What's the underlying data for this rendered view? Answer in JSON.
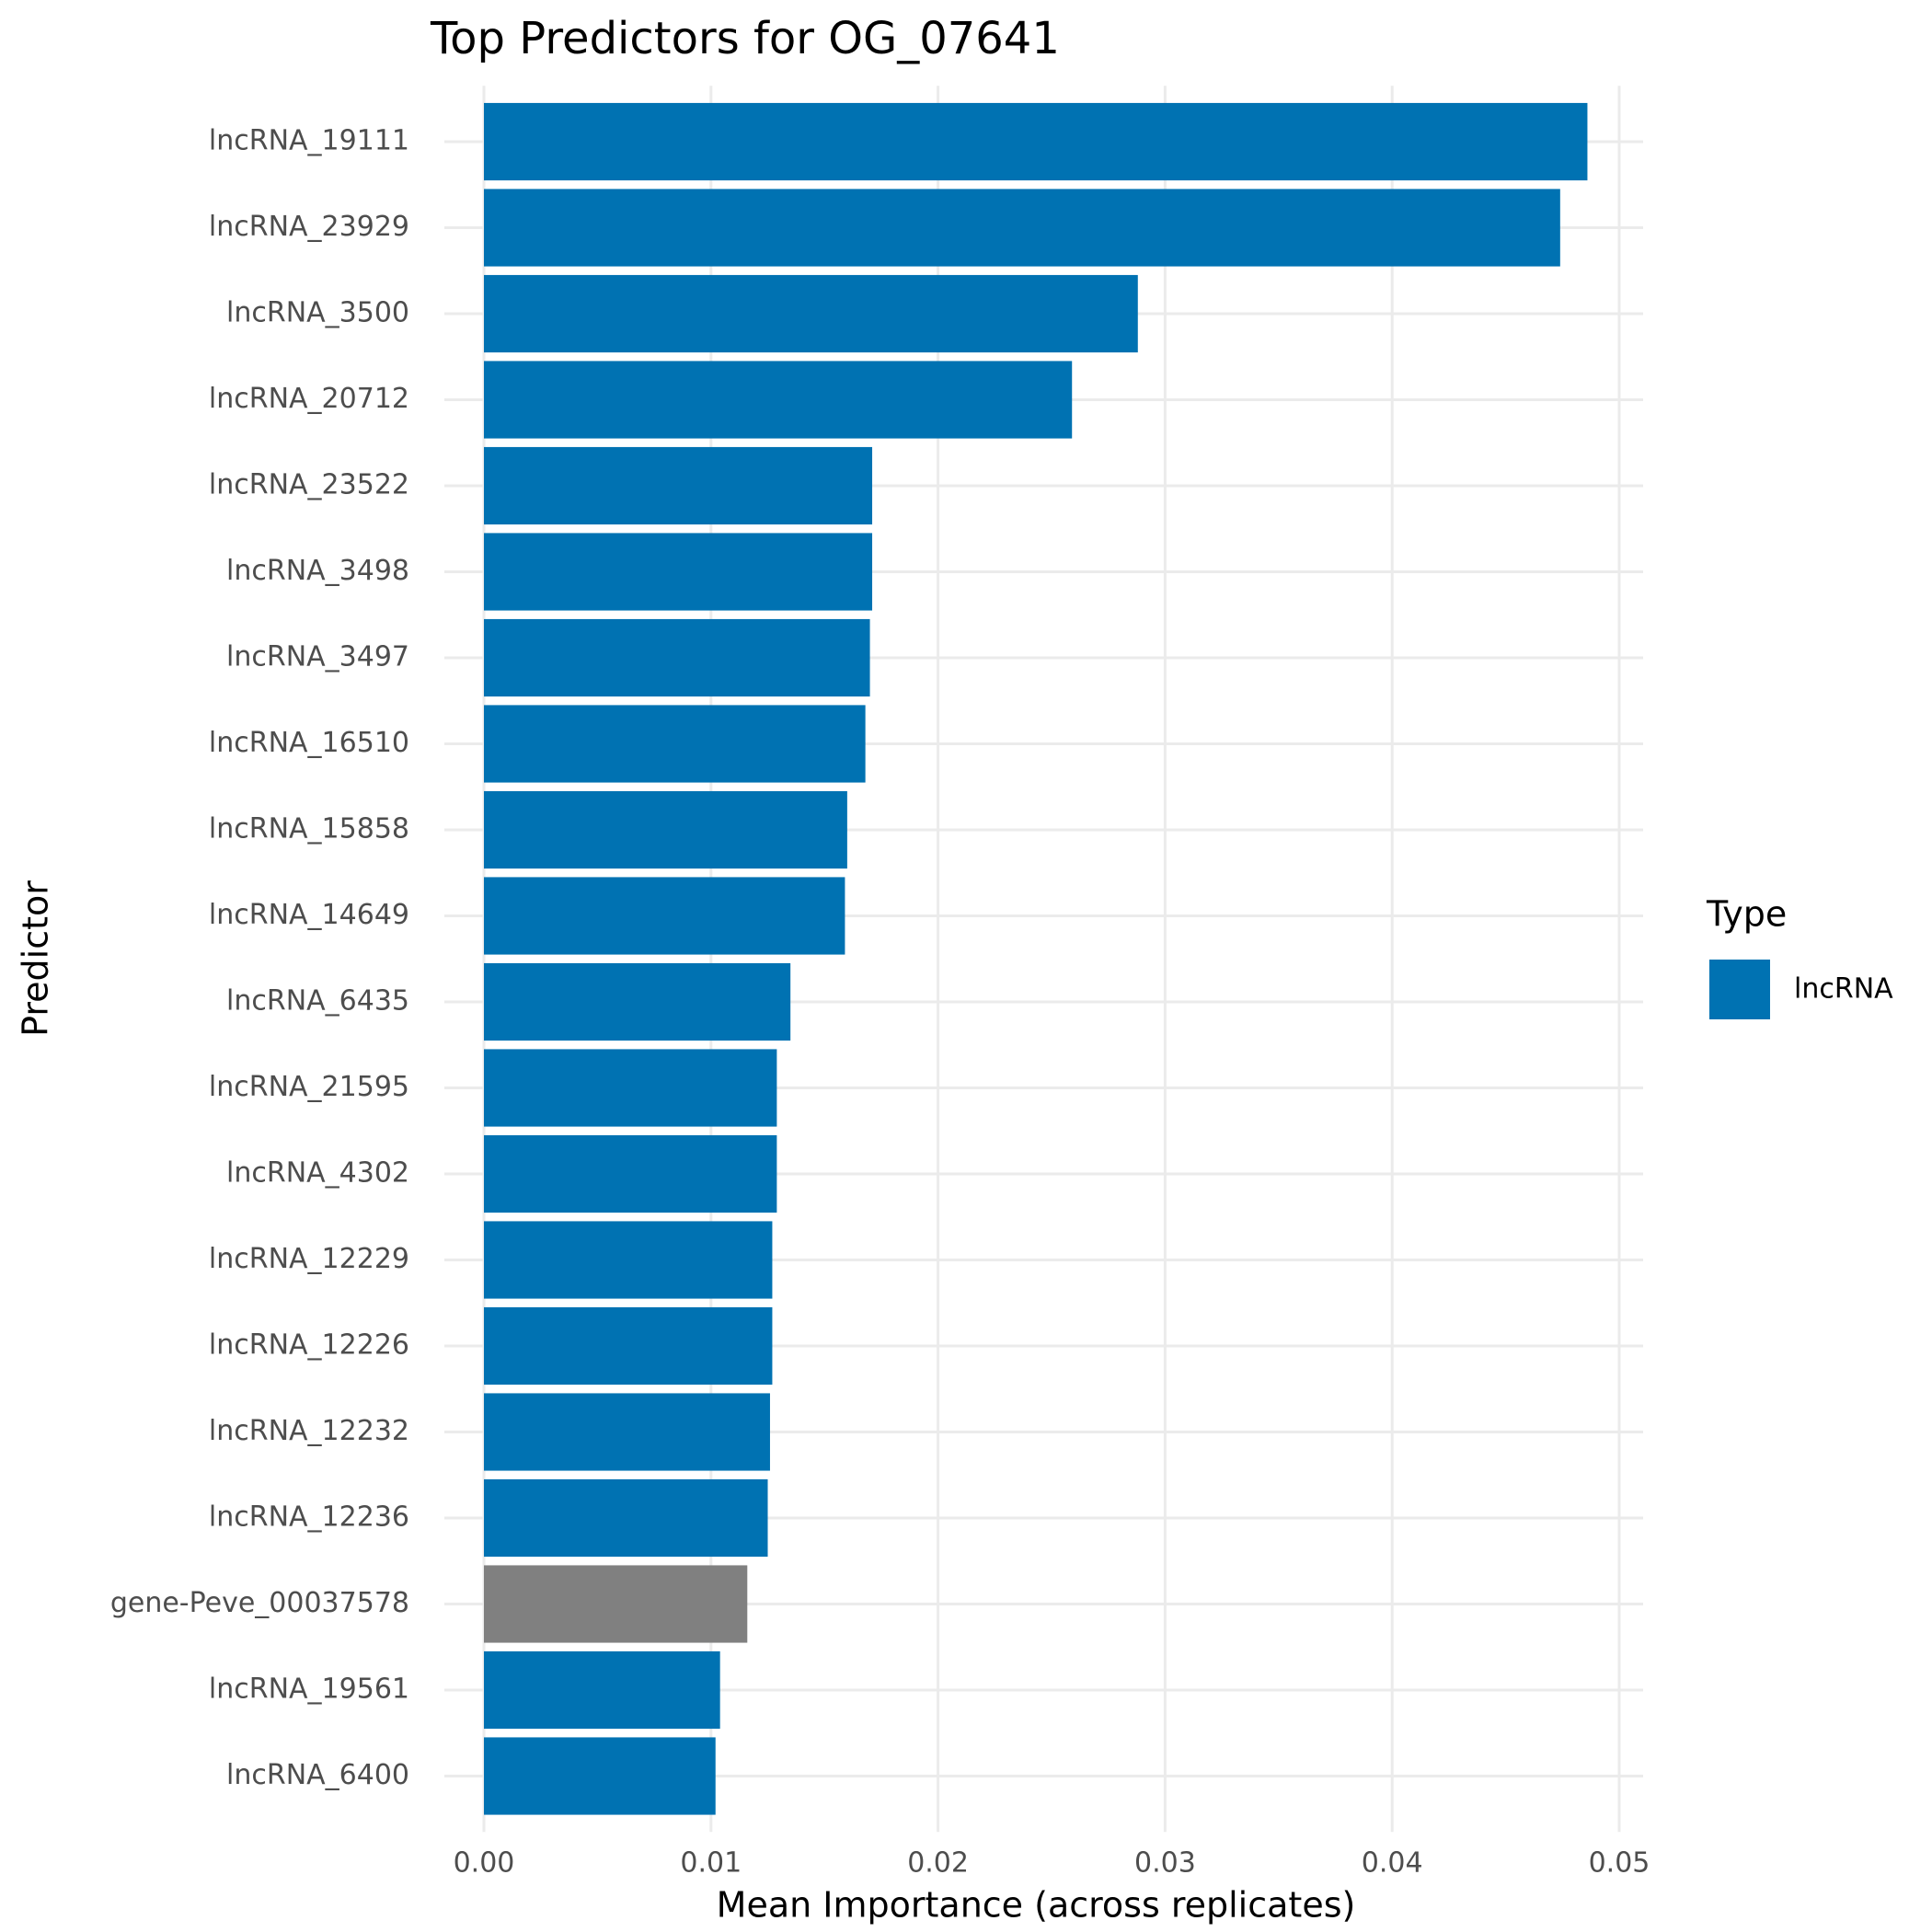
{
  "chart_data": {
    "type": "bar",
    "orientation": "horizontal",
    "title": "Top Predictors for OG_07641",
    "x_label": "Mean Importance (across replicates)",
    "y_label": "Predictor",
    "categories": [
      "lncRNA_19111",
      "lncRNA_23929",
      "lncRNA_3500",
      "lncRNA_20712",
      "lncRNA_23522",
      "lncRNA_3498",
      "lncRNA_3497",
      "lncRNA_16510",
      "lncRNA_15858",
      "lncRNA_14649",
      "lncRNA_6435",
      "lncRNA_21595",
      "lncRNA_4302",
      "lncRNA_12229",
      "lncRNA_12226",
      "lncRNA_12232",
      "lncRNA_12236",
      "gene-Peve_00037578",
      "lncRNA_19561",
      "lncRNA_6400"
    ],
    "values": [
      0.0486,
      0.0474,
      0.0288,
      0.0259,
      0.0171,
      0.0171,
      0.017,
      0.0168,
      0.016,
      0.0159,
      0.0135,
      0.0129,
      0.0129,
      0.0127,
      0.0127,
      0.0126,
      0.0125,
      0.0116,
      0.0104,
      0.0102
    ],
    "colors": [
      "#0072b2",
      "#0072b2",
      "#0072b2",
      "#0072b2",
      "#0072b2",
      "#0072b2",
      "#0072b2",
      "#0072b2",
      "#0072b2",
      "#0072b2",
      "#0072b2",
      "#0072b2",
      "#0072b2",
      "#0072b2",
      "#0072b2",
      "#0072b2",
      "#0072b2",
      "#808080",
      "#0072b2",
      "#0072b2"
    ],
    "xlim": [
      0,
      0.05
    ],
    "xticks": [
      {
        "value": 0,
        "label": "0.00"
      },
      {
        "value": 0.01,
        "label": "0.01"
      },
      {
        "value": 0.02,
        "label": "0.02"
      },
      {
        "value": 0.03,
        "label": "0.03"
      },
      {
        "value": 0.04,
        "label": "0.04"
      },
      {
        "value": 0.05,
        "label": "0.05"
      }
    ],
    "grid": true,
    "legend": {
      "title": "Type",
      "position": "right",
      "entries": [
        {
          "name": "lncRNA",
          "color": "#0072b2"
        }
      ]
    }
  }
}
